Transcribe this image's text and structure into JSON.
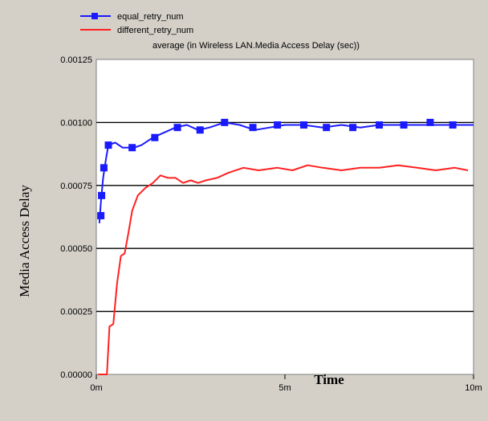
{
  "chart_data": {
    "type": "line",
    "title": "average (in Wireless LAN.Media Access Delay (sec))",
    "xlabel": "Time",
    "ylabel": "Media Access Delay",
    "xlim": [
      0,
      10
    ],
    "ylim": [
      0,
      0.00125
    ],
    "x_ticks": [
      {
        "value": 0,
        "label": "0m"
      },
      {
        "value": 5,
        "label": "5m"
      },
      {
        "value": 10,
        "label": "10m"
      }
    ],
    "y_ticks": [
      {
        "value": 0,
        "label": "0.00000"
      },
      {
        "value": 0.00025,
        "label": "0.00025"
      },
      {
        "value": 0.0005,
        "label": "0.00050"
      },
      {
        "value": 0.00075,
        "label": "0.00075"
      },
      {
        "value": 0.001,
        "label": "0.00100"
      },
      {
        "value": 0.00125,
        "label": "0.00125"
      }
    ],
    "grid": "horizontal",
    "legend_position": "top-left",
    "series": [
      {
        "name": "equal_retry_num",
        "color": "#1a1aff",
        "marker": "square",
        "line": [
          [
            0.08,
            0.0006
          ],
          [
            0.12,
            0.00068
          ],
          [
            0.18,
            0.00078
          ],
          [
            0.25,
            0.00085
          ],
          [
            0.32,
            0.00091
          ],
          [
            0.5,
            0.00092
          ],
          [
            0.7,
            0.0009
          ],
          [
            1.0,
            0.0009
          ],
          [
            1.2,
            0.00091
          ],
          [
            1.5,
            0.00094
          ],
          [
            1.8,
            0.00096
          ],
          [
            2.1,
            0.00098
          ],
          [
            2.4,
            0.00099
          ],
          [
            2.7,
            0.00097
          ],
          [
            3.0,
            0.00098
          ],
          [
            3.4,
            0.001
          ],
          [
            3.8,
            0.00099
          ],
          [
            4.2,
            0.00097
          ],
          [
            4.6,
            0.00098
          ],
          [
            5.0,
            0.00099
          ],
          [
            5.5,
            0.00099
          ],
          [
            6.0,
            0.00098
          ],
          [
            6.5,
            0.00099
          ],
          [
            7.0,
            0.00098
          ],
          [
            7.5,
            0.00099
          ],
          [
            8.0,
            0.00099
          ],
          [
            8.5,
            0.00099
          ],
          [
            9.0,
            0.00099
          ],
          [
            9.5,
            0.00099
          ],
          [
            10.0,
            0.00099
          ]
        ],
        "markers": [
          [
            0.12,
            0.00063
          ],
          [
            0.14,
            0.00071
          ],
          [
            0.2,
            0.00082
          ],
          [
            0.32,
            0.00091
          ],
          [
            0.95,
            0.0009
          ],
          [
            1.55,
            0.00094
          ],
          [
            2.15,
            0.00098
          ],
          [
            2.75,
            0.00097
          ],
          [
            3.4,
            0.001
          ],
          [
            4.15,
            0.00098
          ],
          [
            4.8,
            0.00099
          ],
          [
            5.5,
            0.00099
          ],
          [
            6.1,
            0.00098
          ],
          [
            6.8,
            0.00098
          ],
          [
            7.5,
            0.00099
          ],
          [
            8.15,
            0.00099
          ],
          [
            8.85,
            0.001
          ],
          [
            9.45,
            0.00099
          ]
        ]
      },
      {
        "name": "different_retry_num",
        "color": "#ff2020",
        "line": [
          [
            0.05,
            0.0
          ],
          [
            0.28,
            0.0
          ],
          [
            0.35,
            0.00019
          ],
          [
            0.45,
            0.0002
          ],
          [
            0.55,
            0.00036
          ],
          [
            0.65,
            0.00047
          ],
          [
            0.75,
            0.00048
          ],
          [
            0.85,
            0.00056
          ],
          [
            0.95,
            0.00065
          ],
          [
            1.1,
            0.00071
          ],
          [
            1.3,
            0.00074
          ],
          [
            1.5,
            0.00076
          ],
          [
            1.7,
            0.00079
          ],
          [
            1.9,
            0.00078
          ],
          [
            2.1,
            0.00078
          ],
          [
            2.3,
            0.00076
          ],
          [
            2.5,
            0.00077
          ],
          [
            2.7,
            0.00076
          ],
          [
            2.9,
            0.00077
          ],
          [
            3.2,
            0.00078
          ],
          [
            3.5,
            0.0008
          ],
          [
            3.9,
            0.00082
          ],
          [
            4.3,
            0.00081
          ],
          [
            4.8,
            0.00082
          ],
          [
            5.2,
            0.00081
          ],
          [
            5.6,
            0.00083
          ],
          [
            6.0,
            0.00082
          ],
          [
            6.5,
            0.00081
          ],
          [
            7.0,
            0.00082
          ],
          [
            7.5,
            0.00082
          ],
          [
            8.0,
            0.00083
          ],
          [
            8.5,
            0.00082
          ],
          [
            9.0,
            0.00081
          ],
          [
            9.5,
            0.00082
          ],
          [
            9.85,
            0.00081
          ]
        ]
      }
    ]
  }
}
